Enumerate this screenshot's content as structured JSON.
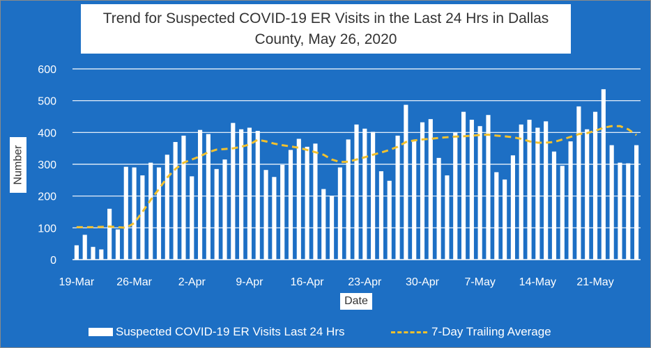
{
  "chart_data": {
    "type": "bar",
    "title": "Trend for Suspected COVID-19 ER Visits in the Last 24 Hrs in Dallas County, May 26, 2020",
    "xlabel": "Date",
    "ylabel": "Number",
    "ylim": [
      0,
      600
    ],
    "yticks": [
      "0",
      "100",
      "200",
      "300",
      "400",
      "500",
      "600"
    ],
    "xtick_labels": [
      "19-Mar",
      "26-Mar",
      "2-Apr",
      "9-Apr",
      "16-Apr",
      "23-Apr",
      "30-Apr",
      "7-May",
      "14-May",
      "21-May"
    ],
    "grid": true,
    "legend_position": "bottom",
    "series": [
      {
        "name": "Suspected COVID-19 ER Visits Last 24 Hrs",
        "type": "bar",
        "color": "#ffffff",
        "values": [
          45,
          78,
          40,
          32,
          160,
          95,
          292,
          290,
          265,
          305,
          290,
          330,
          370,
          390,
          262,
          408,
          395,
          285,
          315,
          430,
          410,
          415,
          405,
          282,
          260,
          298,
          345,
          380,
          355,
          365,
          222,
          200,
          290,
          378,
          425,
          412,
          402,
          278,
          248,
          390,
          487,
          375,
          432,
          442,
          320,
          265,
          400,
          465,
          440,
          420,
          455,
          275,
          252,
          328,
          425,
          440,
          415,
          435,
          340,
          295,
          372,
          482,
          410,
          465,
          536,
          360,
          305,
          303,
          360
        ]
      },
      {
        "name": "7-Day Trailing Average",
        "type": "line",
        "style": "dashed",
        "color": "#f2c12e",
        "values": [
          102,
          102,
          102,
          103,
          104,
          102,
          100,
          115,
          150,
          188,
          222,
          258,
          285,
          305,
          315,
          325,
          338,
          346,
          348,
          350,
          355,
          362,
          377,
          372,
          365,
          360,
          356,
          352,
          345,
          338,
          330,
          315,
          307,
          308,
          315,
          322,
          330,
          337,
          345,
          355,
          370,
          375,
          378,
          380,
          383,
          385,
          387,
          388,
          390,
          392,
          393,
          390,
          388,
          385,
          380,
          372,
          368,
          368,
          370,
          378,
          386,
          395,
          398,
          405,
          415,
          420,
          420,
          410,
          392
        ]
      }
    ]
  }
}
